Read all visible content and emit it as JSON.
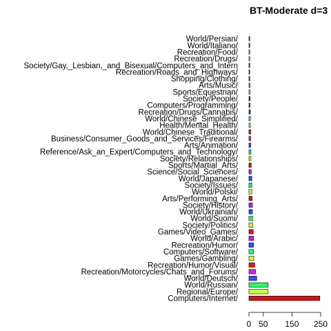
{
  "chart_data": {
    "type": "bar",
    "orientation": "horizontal",
    "title": "BT-Moderate d=3",
    "xlabel": "",
    "ylabel": "",
    "xlim": [
      0,
      250
    ],
    "xticks": [
      0,
      50,
      150,
      250
    ],
    "xtick_labels": [
      "0",
      "50",
      "150",
      "250"
    ],
    "grid": false,
    "legend": "none",
    "categories": [
      "Computers/Internet/",
      "Regional/Europe/",
      "World/Russian/",
      "World/Deutsch/",
      "Recreation/Motorcycles/Chats_and_Forums/",
      "Recreation/Humor/Visual/",
      "Games/Gambling/",
      "Computers/Software/",
      "Recreation/Humor/",
      "World/Arabic/",
      "Games/Video_Games/",
      "Society/Politics/",
      "World/Suomi/",
      "World/Ukrainian/",
      "Society/History/",
      "Arts/Performing_Arts/",
      "World/Polski/",
      "Society/Issues/",
      "World/Japanese/",
      "Science/Social_Sciences/",
      "Sports/Martial_Arts/",
      "Society/Relationships/",
      "Reference/Ask_an_Expert/Computers_and_Technology/",
      "Arts/Animation/",
      "Business/Consumer_Goods_and_Services/Firearms/",
      "World/Chinese_Traditional/",
      "Health/Mental_Health/",
      "World/Chinese_Simplified/",
      "Recreation/Drugs/Cannabis/",
      "Computers/Programming/",
      "Society/People/",
      "Sports/Equestrian/",
      "Arts/Music/",
      "Shopping/Clothing/",
      "Recreation/Roads_and_Highways/",
      "Society/Gay,_Lesbian,_and_Bisexual/Computers_and_Intern",
      "Recreation/Drugs/",
      "Recreation/Food/",
      "World/Italiano/",
      "World/Persian/"
    ],
    "values": [
      247,
      67,
      67,
      27,
      23,
      20,
      17,
      16,
      16,
      16,
      15,
      13,
      13,
      12,
      12,
      11,
      10,
      10,
      10,
      8,
      8,
      7,
      7,
      6,
      6,
      6,
      5,
      5,
      5,
      4,
      4,
      4,
      4,
      3,
      3,
      3,
      3,
      3,
      2,
      2
    ],
    "colors": [
      "#dd1111",
      "#c8ff3a",
      "#22ff66",
      "#3355ff",
      "#cc22ee",
      "#ee1111",
      "#ccff33",
      "#22ff77",
      "#2255ff",
      "#bb22ff",
      "#ee1111",
      "#ccff33",
      "#22ff77",
      "#2255ff",
      "#bb22ff",
      "#ee1111",
      "#ccff33",
      "#22ff77",
      "#2255ff",
      "#bb22ff",
      "#ee1111",
      "#ccff33",
      "#22ff77",
      "#2255ff",
      "#bb22ff",
      "#ee1111",
      "#ccff33",
      "#22ff77",
      "#2255ff",
      "#bb22ff",
      "#ee1111",
      "#ccff33",
      "#22ff77",
      "#2255ff",
      "#bb22ff",
      "#ee1111",
      "#ccff33",
      "#22ff77",
      "#2255ff",
      "#bb22ff"
    ]
  }
}
